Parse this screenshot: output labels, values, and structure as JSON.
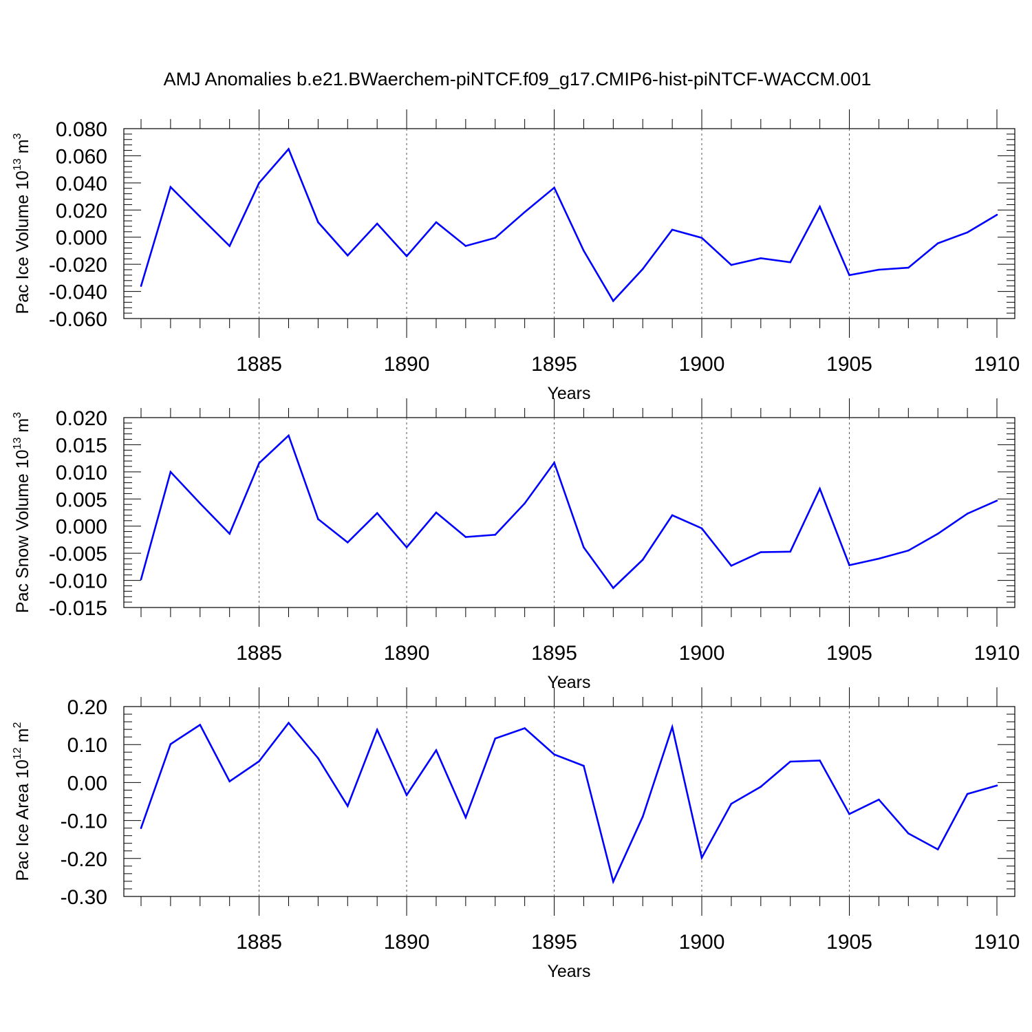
{
  "title": "AMJ Anomalies b.e21.BWaerchem-piNTCF.f09_g17.CMIP6-hist-piNTCF-WACCM.001",
  "line_color": "#0000ff",
  "chart_data": [
    {
      "type": "line",
      "xlabel": "Years",
      "ylabel": "Pac Ice Volume 10",
      "ylabel_exp": "13",
      "ylabel_unit": " m",
      "ylabel_unit_exp": "3",
      "xlim": [
        1881,
        1910
      ],
      "ylim": [
        -0.06,
        0.08
      ],
      "xticks": [
        1885,
        1890,
        1895,
        1900,
        1905,
        1910
      ],
      "xtick_labels": [
        "1885",
        "1890",
        "1895",
        "1900",
        "1905",
        "1910"
      ],
      "yticks": [
        0.08,
        0.06,
        0.04,
        0.02,
        0.0,
        -0.02,
        -0.04,
        -0.06
      ],
      "ytick_labels": [
        "0.080",
        "0.060",
        "0.040",
        "0.020",
        "0.000",
        "-0.020",
        "-0.040",
        "-0.060"
      ],
      "x": [
        1881,
        1882,
        1883,
        1884,
        1885,
        1886,
        1887,
        1888,
        1889,
        1890,
        1891,
        1892,
        1893,
        1894,
        1895,
        1896,
        1897,
        1898,
        1899,
        1900,
        1901,
        1902,
        1903,
        1904,
        1905,
        1906,
        1907,
        1908,
        1909,
        1910
      ],
      "values": [
        -0.036,
        0.037,
        0.015,
        -0.0065,
        0.04,
        0.065,
        0.011,
        -0.0135,
        0.01,
        -0.014,
        0.011,
        -0.0065,
        -0.0005,
        0.0185,
        0.0365,
        -0.01,
        -0.047,
        -0.0235,
        0.0055,
        -0.0005,
        -0.0205,
        -0.0155,
        -0.0185,
        0.0225,
        -0.028,
        -0.024,
        -0.0225,
        -0.0045,
        0.0035,
        0.0165
      ]
    },
    {
      "type": "line",
      "xlabel": "Years",
      "ylabel": "Pac Snow Volume 10",
      "ylabel_exp": "13",
      "ylabel_unit": " m",
      "ylabel_unit_exp": "3",
      "xlim": [
        1881,
        1910
      ],
      "ylim": [
        -0.015,
        0.02
      ],
      "xticks": [
        1885,
        1890,
        1895,
        1900,
        1905,
        1910
      ],
      "xtick_labels": [
        "1885",
        "1890",
        "1895",
        "1900",
        "1905",
        "1910"
      ],
      "yticks": [
        0.02,
        0.015,
        0.01,
        0.005,
        0.0,
        -0.005,
        -0.01,
        -0.015
      ],
      "ytick_labels": [
        "0.020",
        "0.015",
        "0.010",
        "0.005",
        "0.000",
        "-0.005",
        "-0.010",
        "-0.015"
      ],
      "x": [
        1881,
        1882,
        1883,
        1884,
        1885,
        1886,
        1887,
        1888,
        1889,
        1890,
        1891,
        1892,
        1893,
        1894,
        1895,
        1896,
        1897,
        1898,
        1899,
        1900,
        1901,
        1902,
        1903,
        1904,
        1905,
        1906,
        1907,
        1908,
        1909,
        1910
      ],
      "values": [
        -0.0098,
        0.01,
        0.0042,
        -0.0014,
        0.0116,
        0.0167,
        0.0013,
        -0.003,
        0.0024,
        -0.0039,
        0.0025,
        -0.002,
        -0.0016,
        0.0042,
        0.0117,
        -0.0039,
        -0.0114,
        -0.0062,
        0.002,
        -0.0004,
        -0.0073,
        -0.0048,
        -0.0047,
        0.0069,
        -0.0072,
        -0.006,
        -0.0045,
        -0.0014,
        0.0023,
        0.0047
      ]
    },
    {
      "type": "line",
      "xlabel": "Years",
      "ylabel": "Pac Ice Area 10",
      "ylabel_exp": "12",
      "ylabel_unit": " m",
      "ylabel_unit_exp": "2",
      "xlim": [
        1881,
        1910
      ],
      "ylim": [
        -0.3,
        0.2
      ],
      "xticks": [
        1885,
        1890,
        1895,
        1900,
        1905,
        1910
      ],
      "xtick_labels": [
        "1885",
        "1890",
        "1895",
        "1900",
        "1905",
        "1910"
      ],
      "yticks": [
        0.2,
        0.1,
        0.0,
        -0.1,
        -0.2,
        -0.3
      ],
      "ytick_labels": [
        "0.20",
        "0.10",
        "0.00",
        "-0.10",
        "-0.20",
        "-0.30"
      ],
      "x": [
        1881,
        1882,
        1883,
        1884,
        1885,
        1886,
        1887,
        1888,
        1889,
        1890,
        1891,
        1892,
        1893,
        1894,
        1895,
        1896,
        1897,
        1898,
        1899,
        1900,
        1901,
        1902,
        1903,
        1904,
        1905,
        1906,
        1907,
        1908,
        1909,
        1910
      ],
      "values": [
        -0.12,
        0.101,
        0.152,
        0.003,
        0.056,
        0.157,
        0.064,
        -0.062,
        0.139,
        -0.033,
        0.085,
        -0.092,
        0.116,
        0.143,
        0.074,
        0.044,
        -0.261,
        -0.09,
        0.146,
        -0.198,
        -0.056,
        -0.011,
        0.055,
        0.058,
        -0.083,
        -0.045,
        -0.134,
        -0.176,
        -0.03,
        -0.008
      ]
    }
  ]
}
